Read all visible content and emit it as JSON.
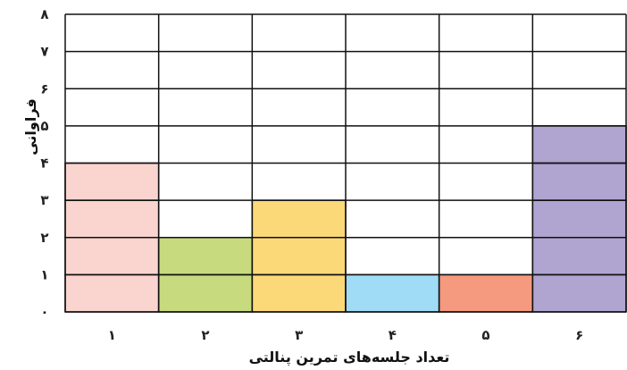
{
  "chart_data": {
    "type": "bar",
    "categories": [
      "۱",
      "۲",
      "۳",
      "۴",
      "۵",
      "۶"
    ],
    "values": [
      4,
      2,
      3,
      1,
      1,
      5
    ],
    "colors": [
      "#fad4cf",
      "#c7da7e",
      "#fcd978",
      "#a0dcf5",
      "#f59a7f",
      "#b0a4d0"
    ],
    "xlabel": "تعداد جلسه‌های تمرین پنالتی",
    "ylabel": "فراوانی",
    "ylim": [
      0,
      8
    ],
    "y_tick_labels": [
      "۰",
      "۱",
      "۲",
      "۳",
      "۴",
      "۵",
      "۶",
      "۷",
      "۸"
    ],
    "grid": true
  }
}
